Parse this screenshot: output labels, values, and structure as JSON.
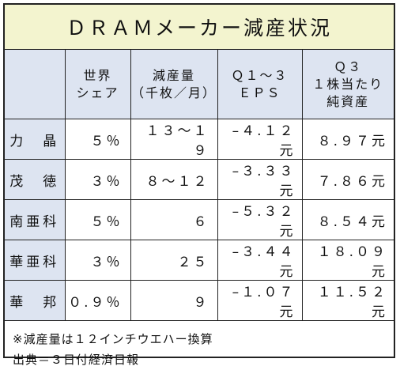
{
  "title": "ＤＲＡＭメーカー減産状況",
  "headers": [
    {
      "lines": [
        ""
      ]
    },
    {
      "lines": [
        "世界",
        "シェア"
      ]
    },
    {
      "lines": [
        "減産量",
        "（千枚／月）"
      ]
    },
    {
      "lines": [
        "Ｑ１～３",
        "ＥＰＳ"
      ]
    },
    {
      "lines": [
        "Ｑ３",
        "１株当たり",
        "純資産"
      ]
    }
  ],
  "rows": [
    {
      "company": "力　晶",
      "share": "５％",
      "cut": "１３～１９",
      "eps": "–４.１２元",
      "nav": "８.９７元"
    },
    {
      "company": "茂　徳",
      "share": "３％",
      "cut": "８～１２",
      "eps": "–３.３３元",
      "nav": "７.８６元"
    },
    {
      "company": "南亜科",
      "share": "５％",
      "cut": "６",
      "eps": "–５.３２元",
      "nav": "８.５４元"
    },
    {
      "company": "華亜科",
      "share": "３％",
      "cut": "２５",
      "eps": "–３.４４元",
      "nav": "１８.０９元"
    },
    {
      "company": "華　邦",
      "share": "０.９％",
      "cut": "９",
      "eps": "–１.０７元",
      "nav": "１１.５２元"
    }
  ],
  "notes": [
    "※減産量は１２インチウエハー換算",
    "出典＝３日付経済日報"
  ]
}
